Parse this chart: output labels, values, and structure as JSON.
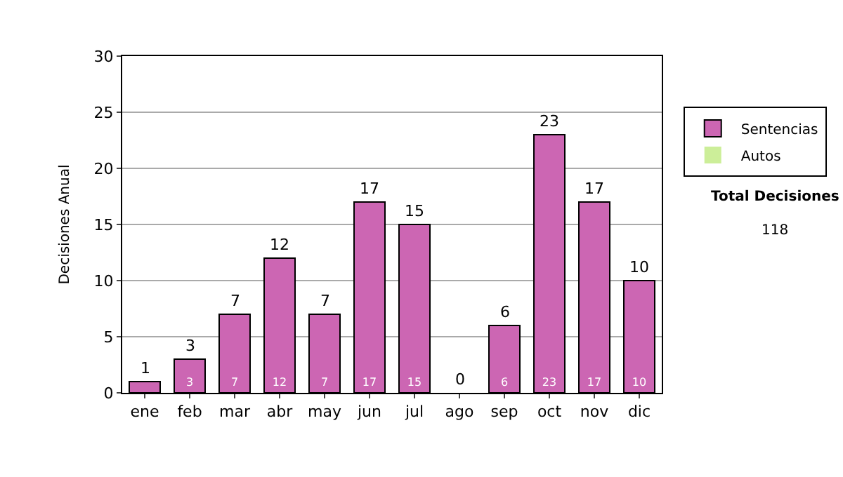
{
  "chart_data": {
    "type": "bar",
    "ylabel": "Decisiones Anual",
    "categories": [
      "ene",
      "feb",
      "mar",
      "abr",
      "may",
      "jun",
      "jul",
      "ago",
      "sep",
      "oct",
      "nov",
      "dic"
    ],
    "stacked": true,
    "series": [
      {
        "name": "Sentencias",
        "color": "#cc66b3",
        "values": [
          1,
          3,
          7,
          12,
          7,
          17,
          15,
          0,
          6,
          23,
          17,
          10
        ],
        "value_labels": [
          null,
          "3",
          "7",
          "12",
          "7",
          "17",
          "15",
          null,
          "6",
          "23",
          "17",
          "10"
        ]
      },
      {
        "name": "Autos",
        "color": "#ccee99",
        "values": [
          0,
          0,
          0,
          0,
          0,
          0,
          0,
          0,
          0,
          0,
          0,
          0
        ]
      }
    ],
    "totals": [
      "1",
      "3",
      "7",
      "12",
      "7",
      "17",
      "15",
      "0",
      "6",
      "23",
      "17",
      "10"
    ],
    "ylim": [
      0,
      30
    ],
    "yticks": [
      0,
      5,
      10,
      15,
      20,
      25,
      30
    ],
    "grid": "y",
    "legend": "right",
    "annotations": [
      "Total Decisiones",
      "118"
    ]
  }
}
